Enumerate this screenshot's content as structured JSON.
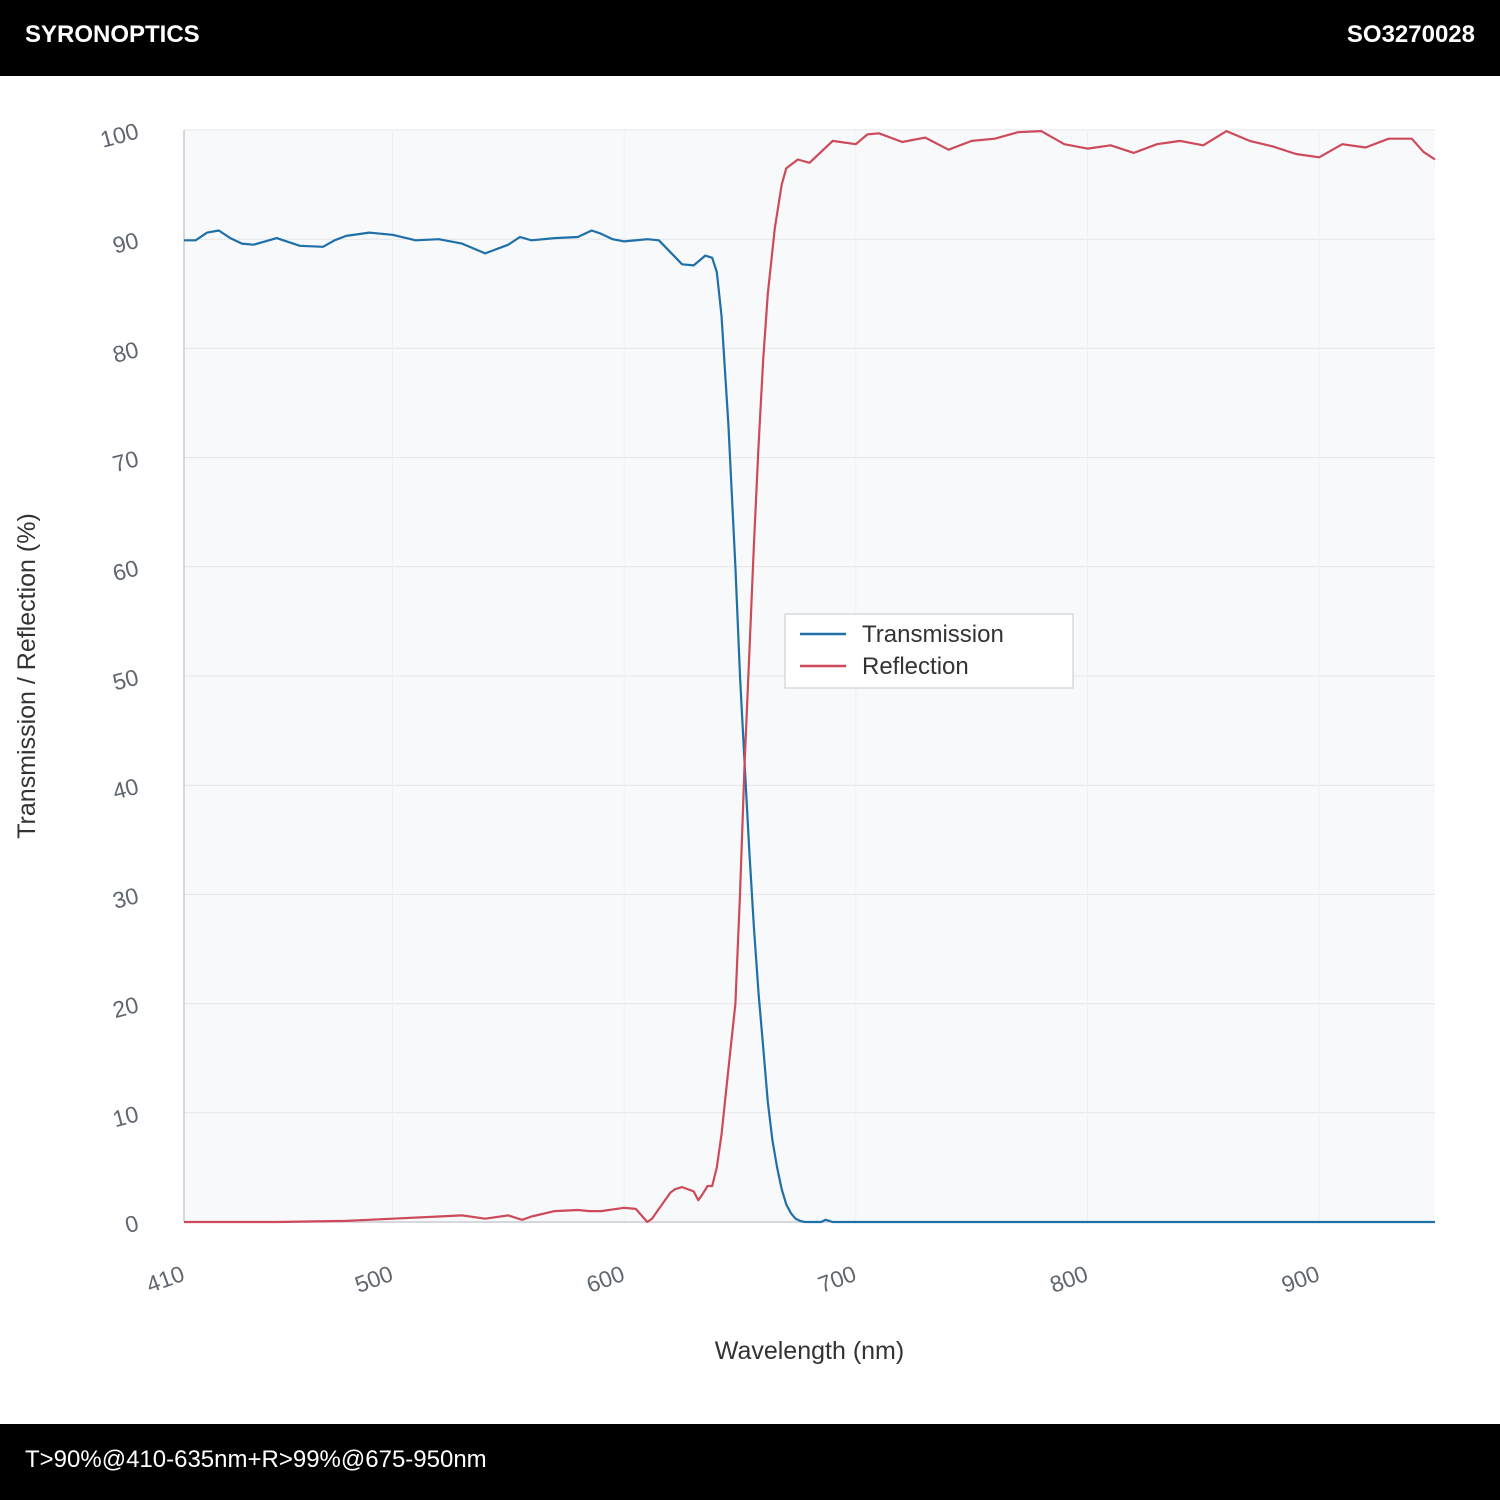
{
  "header": {
    "brand": "SYRONOPTICS",
    "part_number": "SO3270028"
  },
  "footer": {
    "spec": "T>90%@410-635nm+R>99%@675-950nm"
  },
  "colors": {
    "transmission": "#1f6fa8",
    "reflection": "#cc4a5a",
    "plot_bg": "#f8f9fa",
    "grid": "#e4e6ea"
  },
  "chart_data": {
    "type": "line",
    "title": "",
    "xlabel": "Wavelength (nm)",
    "ylabel": "Transmission / Reflection (%)",
    "xlim": [
      410,
      950
    ],
    "ylim": [
      0,
      100
    ],
    "xticks": [
      410,
      500,
      600,
      700,
      800,
      900
    ],
    "yticks": [
      0,
      10,
      20,
      30,
      40,
      50,
      60,
      70,
      80,
      90,
      100
    ],
    "grid": true,
    "legend_position": "center-right",
    "series": [
      {
        "name": "Transmission",
        "color": "#1f6fa8",
        "x": [
          410,
          415,
          420,
          425,
          430,
          435,
          440,
          445,
          450,
          460,
          470,
          475,
          480,
          490,
          500,
          510,
          520,
          530,
          540,
          550,
          555,
          560,
          570,
          580,
          586,
          590,
          595,
          600,
          610,
          615,
          620,
          625,
          630,
          635,
          638,
          640,
          642,
          645,
          648,
          650,
          652,
          654,
          656,
          658,
          660,
          662,
          664,
          666,
          668,
          670,
          672,
          674,
          676,
          678,
          680,
          685,
          687,
          690,
          700,
          750,
          800,
          850,
          900,
          950
        ],
        "y": [
          89.9,
          89.9,
          90.6,
          90.8,
          90.1,
          89.6,
          89.5,
          89.8,
          90.1,
          89.4,
          89.3,
          89.9,
          90.3,
          90.6,
          90.4,
          89.9,
          90.0,
          89.6,
          88.7,
          89.5,
          90.2,
          89.9,
          90.1,
          90.2,
          90.8,
          90.5,
          90.0,
          89.8,
          90.0,
          89.9,
          88.8,
          87.7,
          87.6,
          88.5,
          88.3,
          87.0,
          83.0,
          73.0,
          60.0,
          50.0,
          42.0,
          34.0,
          27.0,
          21.0,
          16.0,
          11.0,
          7.5,
          5.0,
          3.0,
          1.6,
          0.8,
          0.3,
          0.1,
          0.0,
          0.0,
          0.0,
          0.2,
          0.0,
          0.0,
          0.0,
          0.0,
          0.0,
          0.0,
          0.0
        ]
      },
      {
        "name": "Reflection",
        "color": "#cc4a5a",
        "x": [
          410,
          450,
          480,
          500,
          520,
          530,
          540,
          550,
          556,
          560,
          570,
          580,
          585,
          590,
          600,
          605,
          610,
          612,
          615,
          620,
          622,
          625,
          630,
          632,
          634,
          636,
          638,
          640,
          642,
          645,
          648,
          650,
          652,
          654,
          656,
          658,
          660,
          662,
          665,
          668,
          670,
          675,
          680,
          690,
          700,
          705,
          710,
          720,
          730,
          740,
          750,
          760,
          770,
          780,
          790,
          800,
          810,
          820,
          830,
          840,
          850,
          860,
          870,
          880,
          890,
          900,
          910,
          920,
          930,
          940,
          945,
          950
        ],
        "y": [
          0.0,
          0.0,
          0.1,
          0.3,
          0.5,
          0.6,
          0.3,
          0.6,
          0.2,
          0.5,
          1.0,
          1.1,
          1.0,
          1.0,
          1.3,
          1.2,
          0.0,
          0.3,
          1.2,
          2.7,
          3.0,
          3.2,
          2.8,
          2.0,
          2.6,
          3.3,
          3.3,
          5.0,
          8.0,
          14.0,
          20.0,
          30.0,
          42.0,
          52.0,
          62.0,
          71.0,
          79.0,
          85.0,
          91.0,
          95.0,
          96.5,
          97.3,
          97.0,
          99.0,
          98.7,
          99.6,
          99.7,
          98.9,
          99.3,
          98.2,
          99.0,
          99.2,
          99.8,
          99.9,
          98.7,
          98.3,
          98.6,
          97.9,
          98.7,
          99.0,
          98.6,
          99.9,
          99.0,
          98.5,
          97.8,
          97.5,
          98.7,
          98.4,
          99.2,
          99.2,
          98.0,
          97.3
        ]
      }
    ]
  }
}
